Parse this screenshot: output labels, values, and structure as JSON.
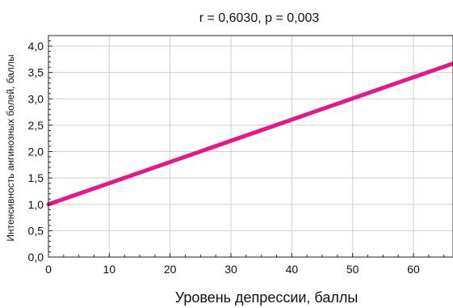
{
  "chart_data": {
    "type": "line",
    "title": "r = 0,6030,  p = 0,003",
    "xlabel": "Уровень  депрессии,  баллы",
    "ylabel": "Интенсивность  ангинозных  болей,  баллы",
    "xlim": [
      0,
      66.5
    ],
    "ylim": [
      0,
      4.2
    ],
    "x_ticks": [
      0,
      10,
      20,
      30,
      40,
      50,
      60
    ],
    "x_tick_labels": [
      "0",
      "10",
      "20",
      "30",
      "40",
      "50",
      "60"
    ],
    "y_ticks": [
      0,
      0.5,
      1.0,
      1.5,
      2.0,
      2.5,
      3.0,
      3.5,
      4.0
    ],
    "y_tick_labels": [
      "0,0",
      "0,5",
      "1,0",
      "1,5",
      "2,0",
      "2,5",
      "3,0",
      "3,5",
      "4,0"
    ],
    "grid": true,
    "series": [
      {
        "x": [
          0,
          66.5
        ],
        "y": [
          1.0,
          3.67
        ],
        "color": "#e6168c"
      }
    ]
  }
}
